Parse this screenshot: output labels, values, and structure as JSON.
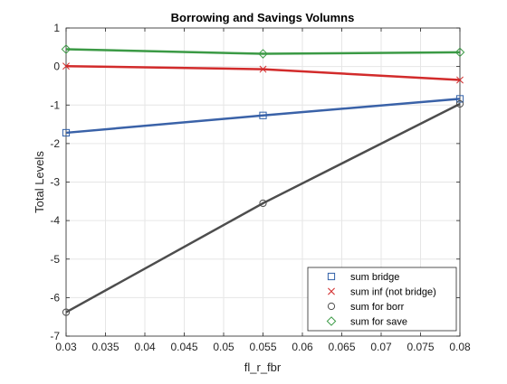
{
  "chart_data": {
    "type": "line",
    "title": "Borrowing and Savings Volumns",
    "xlabel": "fl_r_fbr",
    "ylabel": "Total Levels",
    "xlim": [
      0.03,
      0.08
    ],
    "ylim": [
      -7,
      1
    ],
    "xticks": [
      0.03,
      0.035,
      0.04,
      0.045,
      0.05,
      0.055,
      0.06,
      0.065,
      0.07,
      0.075,
      0.08
    ],
    "xtick_labels": [
      "0.03",
      "0.035",
      "0.04",
      "0.045",
      "0.05",
      "0.055",
      "0.06",
      "0.065",
      "0.07",
      "0.075",
      "0.08"
    ],
    "yticks": [
      -7,
      -6,
      -5,
      -4,
      -3,
      -2,
      -1,
      0,
      1
    ],
    "ytick_labels": [
      "-7",
      "-6",
      "-5",
      "-4",
      "-3",
      "-2",
      "-1",
      "0",
      "1"
    ],
    "grid": true,
    "legend_position": "bottom-right",
    "x": [
      0.03,
      0.055,
      0.08
    ],
    "series": [
      {
        "name": "sum bridge",
        "values": [
          -1.72,
          -1.27,
          -0.84
        ],
        "color": "#3a62a8",
        "marker": "square",
        "marker_color": "#2f5fa8"
      },
      {
        "name": "sum inf (not bridge)",
        "values": [
          0.01,
          -0.07,
          -0.35
        ],
        "color": "#d22b2b",
        "marker": "x",
        "marker_color": "#d22b2b"
      },
      {
        "name": "sum for borr",
        "values": [
          -6.38,
          -3.55,
          -0.97
        ],
        "color": "#4d4d4d",
        "marker": "circle",
        "marker_color": "#4d4d4d"
      },
      {
        "name": "sum for save",
        "values": [
          0.45,
          0.33,
          0.37
        ],
        "color": "#3b9a45",
        "marker": "diamond",
        "marker_color": "#3b9a45"
      }
    ]
  }
}
